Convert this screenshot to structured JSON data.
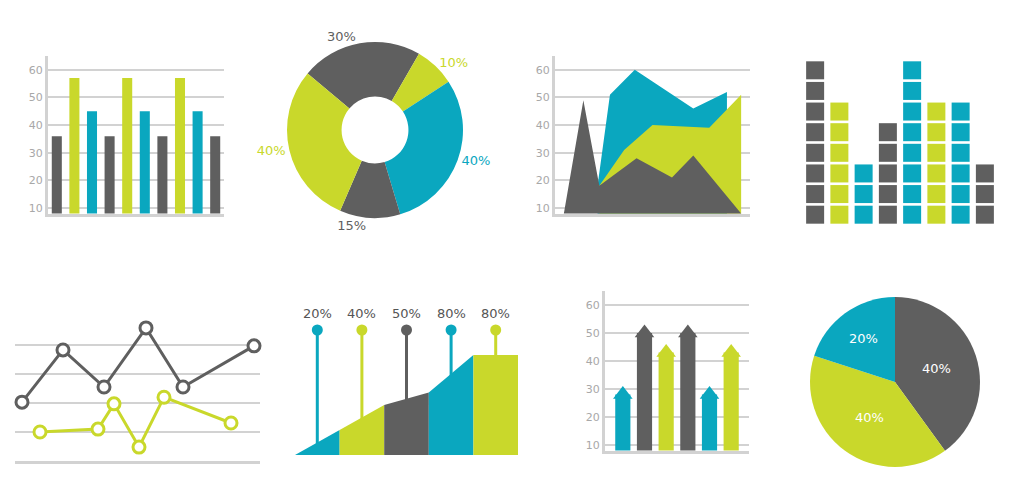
{
  "chart_data": [
    {
      "type": "bar",
      "categories": [
        null,
        null,
        null,
        null,
        null,
        null,
        null,
        null,
        null,
        null
      ],
      "values": [
        36,
        57,
        45,
        36,
        57,
        45,
        36,
        57,
        45,
        36
      ],
      "colors": [
        "#5f5f5f",
        "#c9d82b",
        "#0aa7bf",
        "#5f5f5f",
        "#c9d82b",
        "#0aa7bf",
        "#5f5f5f",
        "#c9d82b",
        "#0aa7bf",
        "#5f5f5f"
      ],
      "ylim": [
        8,
        65
      ],
      "yticks": [
        10,
        20,
        30,
        40,
        50,
        60
      ],
      "grid": true,
      "tick_labels": "y"
    },
    {
      "type": "donut",
      "values": [
        30,
        10,
        40,
        15,
        40
      ],
      "value_labels": [
        "30%",
        "10%",
        "40%",
        "15%",
        "40%"
      ],
      "colors": [
        "#5f5f5f",
        "#c9d82b",
        "#0aa7bf",
        "#5f5f5f",
        "#c9d82b"
      ],
      "data_labels": true
    },
    {
      "type": "area",
      "series": [
        {
          "color": "#0aa7bf",
          "x": [
            1.9,
            2.6,
            4.0,
            7.3,
            9.2,
            9.2
          ],
          "values": [
            18,
            51,
            60,
            46,
            52,
            39
          ]
        },
        {
          "color": "#c9d82b",
          "x": [
            2.0,
            3.4,
            5.0,
            8.2,
            10.0
          ],
          "values": [
            18,
            31,
            40,
            39,
            51
          ]
        },
        {
          "color": "#5f5f5f",
          "x": [
            0,
            1.1,
            2.0,
            4.1,
            6.1,
            7.3,
            10.0
          ],
          "values": [
            8,
            49,
            18,
            28,
            21,
            29,
            8
          ]
        }
      ],
      "xlim": [
        -0.5,
        10.5
      ],
      "ylim": [
        8,
        65
      ],
      "yticks": [
        10,
        20,
        30,
        40,
        50,
        60
      ],
      "grid": true,
      "tick_labels": "y"
    },
    {
      "type": "bar",
      "marker": "square",
      "values": [
        8,
        6,
        3,
        5,
        8,
        6,
        6,
        3
      ],
      "colors": [
        "#5f5f5f",
        "#c9d82b",
        "#0aa7bf",
        "#5f5f5f",
        "#0aa7bf",
        "#c9d82b",
        "#0aa7bf",
        "#5f5f5f"
      ],
      "ylim": [
        0,
        8
      ],
      "tick_labels": false
    },
    {
      "type": "line",
      "marker": "circle",
      "series": [
        {
          "color": "#5f5f5f",
          "x": [
            0.7,
            4.8,
            8.9,
            13.1,
            16.8,
            23.9
          ],
          "values": [
            2.03,
            3.83,
            2.55,
            4.59,
            2.55,
            3.97
          ]
        },
        {
          "color": "#c9d82b",
          "x": [
            2.5,
            8.3,
            9.9,
            12.4,
            14.9,
            21.6
          ],
          "values": [
            1.0,
            1.1,
            1.97,
            0.48,
            2.2,
            1.31
          ]
        }
      ],
      "xlim": [
        0,
        24.5
      ],
      "ylim": [
        0,
        5
      ],
      "yticks": [
        0,
        1,
        2,
        3,
        4,
        5
      ],
      "grid": true,
      "tick_labels": false
    },
    {
      "type": "area",
      "marker": "circle",
      "values": [
        20,
        40,
        50,
        80,
        80
      ],
      "value_labels": [
        "20%",
        "40%",
        "50%",
        "80%",
        "80%"
      ],
      "colors": [
        "#0aa7bf",
        "#c9d82b",
        "#5f5f5f",
        "#0aa7bf",
        "#c9d82b"
      ],
      "ylim": [
        0,
        100
      ],
      "data_labels": true,
      "tick_labels": false
    },
    {
      "type": "bar",
      "marker": "arrow",
      "categories": [
        null,
        null,
        null,
        null,
        null,
        null
      ],
      "values": [
        28,
        50,
        43,
        50,
        28,
        43
      ],
      "colors": [
        "#0aa7bf",
        "#5f5f5f",
        "#c9d82b",
        "#5f5f5f",
        "#0aa7bf",
        "#c9d82b"
      ],
      "ylim": [
        8,
        65
      ],
      "yticks": [
        10,
        20,
        30,
        40,
        50,
        60
      ],
      "grid": true,
      "tick_labels": "y"
    },
    {
      "type": "pie",
      "values": [
        40,
        40,
        20
      ],
      "value_labels": [
        "40%",
        "40%",
        "20%"
      ],
      "colors": [
        "#5f5f5f",
        "#c9d82b",
        "#0aa7bf"
      ],
      "data_labels": true
    }
  ]
}
